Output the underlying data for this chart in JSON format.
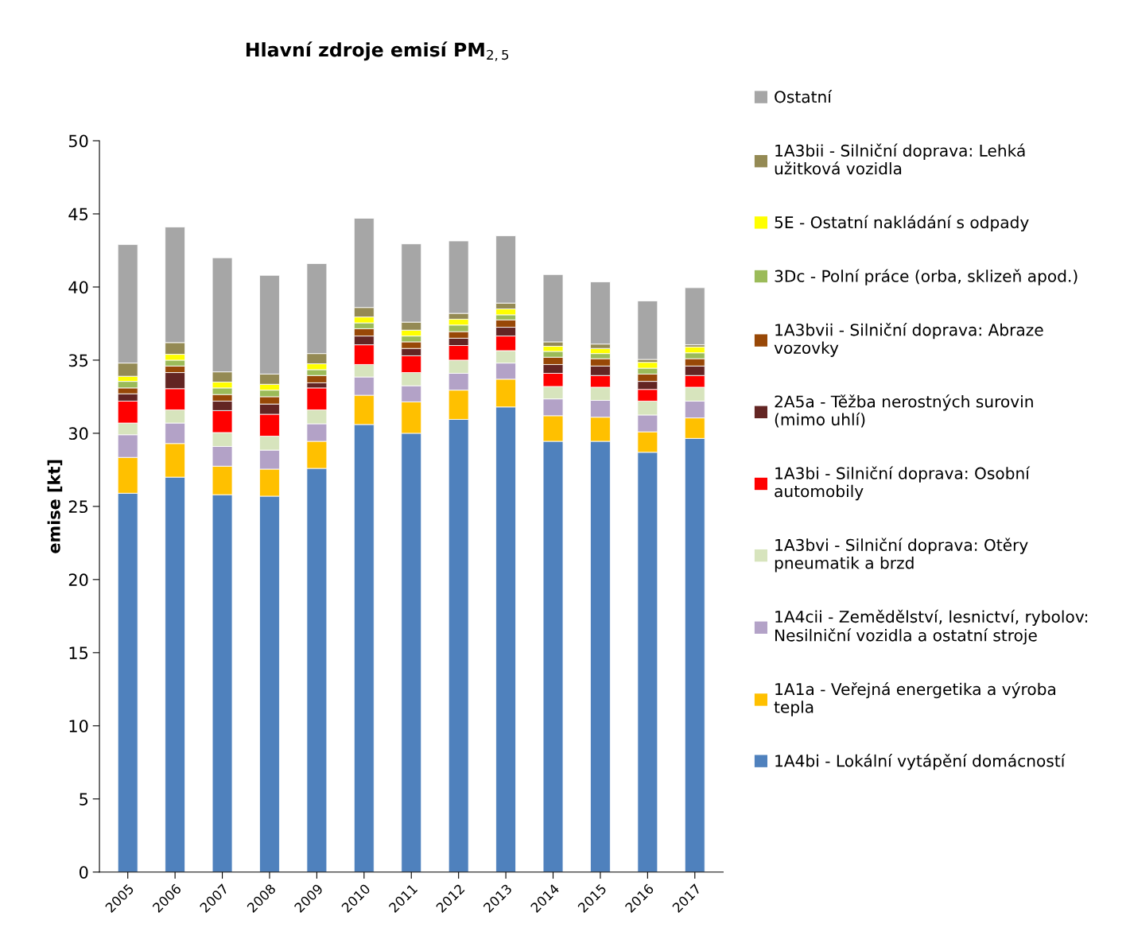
{
  "chart_data": {
    "type": "bar",
    "stacked": true,
    "title": "Hlavní zdroje emisí PM$_{2,5}$",
    "ylabel": "emise [kt]",
    "categories": [
      "2005",
      "2006",
      "2007",
      "2008",
      "2009",
      "2010",
      "2011",
      "2012",
      "2013",
      "2014",
      "2015",
      "2016",
      "2017"
    ],
    "ylim": [
      0,
      50
    ],
    "yticks": [
      0,
      5,
      10,
      15,
      20,
      25,
      30,
      35,
      40,
      45,
      50
    ],
    "grid": false,
    "legend": "right",
    "series": [
      {
        "name": "1A4bi - Lokální vytápění domácností",
        "color": "#4f81bd",
        "values": [
          25.9,
          27.0,
          25.8,
          25.7,
          27.6,
          30.6,
          30.0,
          30.95,
          31.8,
          29.45,
          29.45,
          28.7,
          29.65
        ]
      },
      {
        "name": "1A1a - Veřejná energetika a výroba\ntepla",
        "color": "#ffc000",
        "values": [
          2.45,
          2.3,
          1.95,
          1.85,
          1.85,
          2.0,
          2.15,
          2.0,
          1.9,
          1.75,
          1.65,
          1.4,
          1.4
        ]
      },
      {
        "name": "1A4cii - Zemědělství, lesnictví, rybolov:\nNesilniční vozidla a ostatní stroje",
        "color": "#b3a2c7",
        "values": [
          1.55,
          1.4,
          1.35,
          1.3,
          1.2,
          1.25,
          1.1,
          1.15,
          1.1,
          1.15,
          1.15,
          1.15,
          1.15
        ]
      },
      {
        "name": "1A3bvi - Silniční doprava: Otěry\npneumatik a brzd",
        "color": "#d7e4bd",
        "values": [
          0.8,
          0.9,
          0.95,
          0.95,
          0.95,
          0.85,
          0.9,
          0.9,
          0.85,
          0.85,
          0.9,
          0.95,
          0.95
        ]
      },
      {
        "name": "1A3bi - Silniční doprava: Osobní\nautomobily",
        "color": "#ff0000",
        "values": [
          1.5,
          1.45,
          1.5,
          1.5,
          1.5,
          1.35,
          1.15,
          1.0,
          1.0,
          0.9,
          0.8,
          0.8,
          0.8
        ]
      },
      {
        "name": "2A5a - Těžba nerostných surovin\n(mimo uhlí)",
        "color": "#632523",
        "values": [
          0.5,
          1.1,
          0.65,
          0.7,
          0.35,
          0.6,
          0.5,
          0.5,
          0.6,
          0.6,
          0.65,
          0.55,
          0.65
        ]
      },
      {
        "name": "1A3bvii - Silniční doprava: Abraze\nvozovky",
        "color": "#984807",
        "values": [
          0.4,
          0.45,
          0.45,
          0.5,
          0.5,
          0.5,
          0.45,
          0.45,
          0.5,
          0.5,
          0.5,
          0.5,
          0.5
        ]
      },
      {
        "name": "3Dc - Polní práce (orba, sklizeň apod.)",
        "color": "#9bbb59",
        "values": [
          0.45,
          0.4,
          0.45,
          0.45,
          0.4,
          0.4,
          0.4,
          0.45,
          0.35,
          0.4,
          0.35,
          0.4,
          0.4
        ]
      },
      {
        "name": "5E - Ostatní nakládání s odpady",
        "color": "#ffff00",
        "values": [
          0.35,
          0.4,
          0.4,
          0.4,
          0.4,
          0.4,
          0.4,
          0.4,
          0.4,
          0.35,
          0.35,
          0.4,
          0.4
        ]
      },
      {
        "name": "1A3bii - Silniční doprava: Lehká\nužitková vozidla",
        "color": "#948a54",
        "values": [
          0.9,
          0.8,
          0.7,
          0.7,
          0.7,
          0.65,
          0.55,
          0.4,
          0.4,
          0.3,
          0.3,
          0.2,
          0.15
        ]
      },
      {
        "name": "Ostatní",
        "color": "#a6a6a6",
        "values": [
          8.1,
          7.9,
          7.8,
          6.75,
          6.15,
          6.1,
          5.35,
          4.95,
          4.6,
          4.6,
          4.25,
          4.0,
          3.9
        ]
      }
    ]
  }
}
